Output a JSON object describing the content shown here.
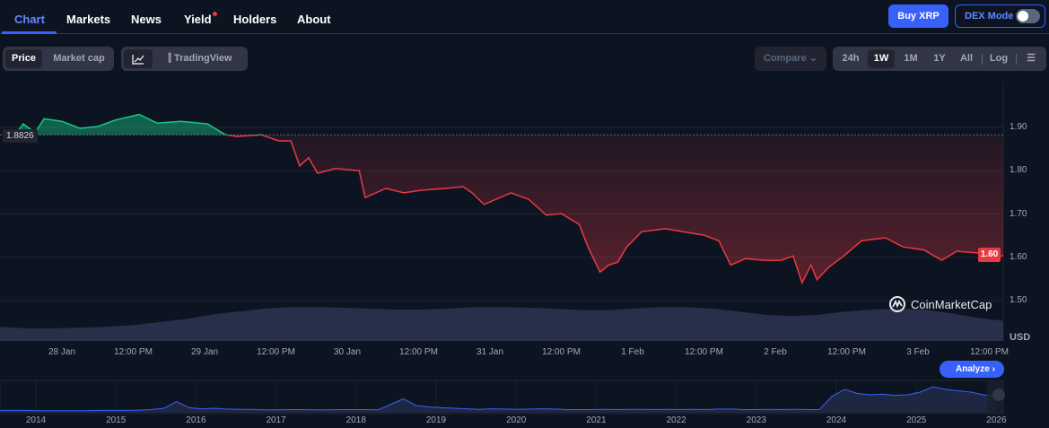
{
  "nav": {
    "tabs": [
      {
        "label": "Chart",
        "active": true
      },
      {
        "label": "Markets"
      },
      {
        "label": "News"
      },
      {
        "label": "Yield",
        "dot": true
      },
      {
        "label": "Holders"
      },
      {
        "label": "About"
      }
    ],
    "buy_label": "Buy XRP",
    "dex_label": "DEX Mode",
    "dex_enabled": false
  },
  "toolbar": {
    "price_label": "Price",
    "marketcap_label": "Market cap",
    "tradingview_label": "TradingView",
    "compare_label": "Compare",
    "ranges": [
      "24h",
      "1W",
      "1M",
      "1Y",
      "All"
    ],
    "active_range": "1W",
    "log_label": "Log"
  },
  "accent": "#3861fb",
  "up_color": "#16c784",
  "down_color": "#ea3943",
  "watermark": "CoinMarketCap",
  "analyze_label": "Analyze",
  "chart_data": {
    "type": "line",
    "ylabel": "USD",
    "y_ticks": [
      "1.90",
      "1.80",
      "1.70",
      "1.60",
      "1.50"
    ],
    "ylim": [
      1.47,
      1.96
    ],
    "reference_price": "1.8826",
    "current_price": "1.60",
    "x_ticks": [
      "28 Jan",
      "12:00 PM",
      "29 Jan",
      "12:00 PM",
      "30 Jan",
      "12:00 PM",
      "31 Jan",
      "12:00 PM",
      "1 Feb",
      "12:00 PM",
      "2 Feb",
      "12:00 PM",
      "3 Feb",
      "12:00 PM"
    ],
    "points": [
      [
        "Jan 27 16:30",
        1.89
      ],
      [
        "Jan 27 17:30",
        1.908
      ],
      [
        "Jan 27 19:30",
        1.888
      ],
      [
        "Jan 27 21:00",
        1.92
      ],
      [
        "Jan 28 00:00",
        1.914
      ],
      [
        "Jan 28 03:00",
        1.898
      ],
      [
        "Jan 28 06:00",
        1.902
      ],
      [
        "Jan 28 09:00",
        1.917
      ],
      [
        "Jan 28 13:00",
        1.93
      ],
      [
        "Jan 28 16:00",
        1.91
      ],
      [
        "Jan 28 20:00",
        1.914
      ],
      [
        "Jan 29 00:30",
        1.908
      ],
      [
        "Jan 29 03:30",
        1.883
      ],
      [
        "Jan 29 05:30",
        1.879
      ],
      [
        "Jan 29 09:30",
        1.883
      ],
      [
        "Jan 29 12:30",
        1.869
      ],
      [
        "Jan 29 14:30",
        1.869
      ],
      [
        "Jan 29 16:00",
        1.811
      ],
      [
        "Jan 29 17:30",
        1.83
      ],
      [
        "Jan 29 19:00",
        1.794
      ],
      [
        "Jan 29 22:00",
        1.805
      ],
      [
        "Jan 30 02:00",
        1.8
      ],
      [
        "Jan 30 03:00",
        1.738
      ],
      [
        "Jan 30 06:30",
        1.759
      ],
      [
        "Jan 30 09:30",
        1.749
      ],
      [
        "Jan 30 12:30",
        1.755
      ],
      [
        "Jan 30 16:30",
        1.759
      ],
      [
        "Jan 30 19:30",
        1.763
      ],
      [
        "Jan 30 21:00",
        1.749
      ],
      [
        "Jan 30 23:00",
        1.722
      ],
      [
        "Jan 31 03:30",
        1.749
      ],
      [
        "Jan 31 06:30",
        1.734
      ],
      [
        "Jan 31 09:30",
        1.697
      ],
      [
        "Jan 31 12:00",
        1.701
      ],
      [
        "Jan 31 15:00",
        1.676
      ],
      [
        "Jan 31 16:30",
        1.624
      ],
      [
        "Jan 31 18:30",
        1.566
      ],
      [
        "Jan 31 20:00",
        1.582
      ],
      [
        "Jan 31 21:30",
        1.589
      ],
      [
        "Jan 31 23:00",
        1.624
      ],
      [
        "Feb 1 01:30",
        1.659
      ],
      [
        "Feb 1 05:30",
        1.666
      ],
      [
        "Feb 1 08:30",
        1.659
      ],
      [
        "Feb 1 12:00",
        1.651
      ],
      [
        "Feb 1 14:30",
        1.638
      ],
      [
        "Feb 1 16:30",
        1.582
      ],
      [
        "Feb 1 19:00",
        1.597
      ],
      [
        "Feb 1 22:00",
        1.593
      ],
      [
        "Feb 2 01:00",
        1.593
      ],
      [
        "Feb 2 03:00",
        1.603
      ],
      [
        "Feb 2 04:30",
        1.541
      ],
      [
        "Feb 2 06:00",
        1.582
      ],
      [
        "Feb 2 07:00",
        1.548
      ],
      [
        "Feb 2 09:00",
        1.577
      ],
      [
        "Feb 2 11:30",
        1.603
      ],
      [
        "Feb 2 14:30",
        1.638
      ],
      [
        "Feb 2 18:30",
        1.645
      ],
      [
        "Feb 2 21:30",
        1.624
      ],
      [
        "Feb 3 01:00",
        1.617
      ],
      [
        "Feb 3 04:00",
        1.593
      ],
      [
        "Feb 3 06:30",
        1.614
      ],
      [
        "Feb 3 10:00",
        1.61
      ],
      [
        "Feb 3 12:30",
        1.597
      ],
      [
        "Feb 3 14:30",
        1.605
      ]
    ],
    "volume_relative": [
      0.35,
      0.3,
      0.3,
      0.32,
      0.35,
      0.4,
      0.5,
      0.6,
      0.75,
      0.85,
      0.95,
      1,
      1,
      0.98,
      0.95,
      0.92,
      0.92,
      0.95,
      1,
      1,
      0.98,
      0.95,
      0.9,
      0.9,
      0.95,
      1,
      1,
      0.95,
      0.85,
      0.75,
      0.7,
      0.75,
      0.85,
      0.92,
      0.95,
      0.92,
      0.8,
      0.65,
      0.55
    ],
    "overview": {
      "x_ticks": [
        "2014",
        "2015",
        "2016",
        "2017",
        "2018",
        "2019",
        "2020",
        "2021",
        "2022",
        "2023",
        "2024",
        "2025",
        "2026"
      ],
      "values_relative": [
        0.02,
        0.02,
        0.02,
        0.01,
        0.01,
        0.01,
        0.01,
        0.01,
        0.02,
        0.02,
        0.02,
        0.03,
        0.05,
        0.1,
        0.35,
        0.12,
        0.08,
        0.1,
        0.07,
        0.06,
        0.06,
        0.04,
        0.04,
        0.05,
        0.05,
        0.04,
        0.04,
        0.05,
        0.05,
        0.05,
        0.04,
        0.25,
        0.45,
        0.2,
        0.15,
        0.12,
        0.1,
        0.08,
        0.06,
        0.08,
        0.07,
        0.06,
        0.07,
        0.08,
        0.07,
        0.05,
        0.05,
        0.05,
        0.06,
        0.05,
        0.06,
        0.06,
        0.05,
        0.06,
        0.05,
        0.06,
        0.05,
        0.07,
        0.07,
        0.05,
        0.05,
        0.06,
        0.05,
        0.06,
        0.05,
        0.05,
        0.55,
        0.8,
        0.65,
        0.6,
        0.62,
        0.58,
        0.6,
        0.7,
        0.9,
        0.8,
        0.75,
        0.7,
        0.6,
        0.55
      ]
    }
  }
}
